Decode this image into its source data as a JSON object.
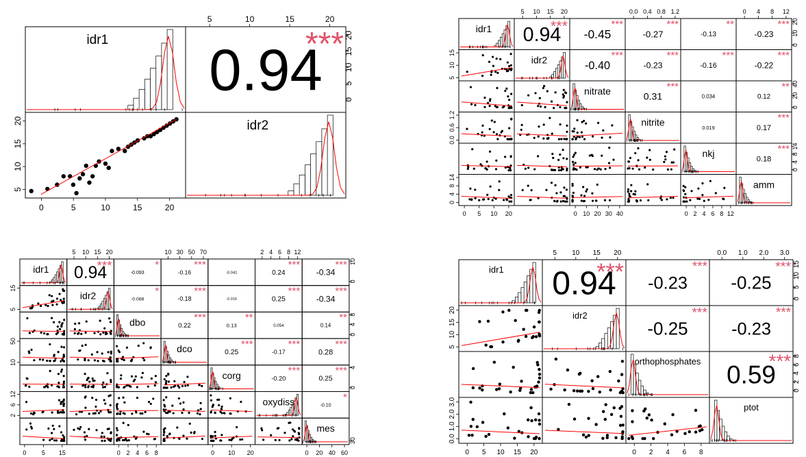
{
  "colors": {
    "star": "#DF536B",
    "point": "#000000",
    "smooth": "#FF0000",
    "frame": "#000000",
    "hist": "#ffffff"
  },
  "chart_data": [
    {
      "type": "scatter",
      "title": "",
      "variables": [
        "idr1",
        "idr2"
      ],
      "correlations": [
        {
          "pair": [
            "idr1",
            "idr2"
          ],
          "r": "0.94",
          "stars": "***"
        }
      ],
      "axis_ticks": {
        "top": [
          {
            "col": "idr2",
            "labels": [
              "5",
              "10",
              "15",
              "20"
            ]
          }
        ],
        "right": [
          {
            "row": "idr1",
            "labels": [
              "0",
              "5",
              "10",
              "15",
              "20"
            ]
          }
        ],
        "left": [
          {
            "row": "idr2",
            "labels": [
              "5",
              "10",
              "15",
              "20"
            ]
          }
        ],
        "bottom": [
          {
            "col": "idr1",
            "labels": [
              "0",
              "5",
              "10",
              "15",
              "20"
            ]
          }
        ]
      },
      "scatter_points": [
        {
          "row": "idr2",
          "col": "idr1",
          "x": [
            -2.5,
            0,
            1.5,
            2.5,
            3.5,
            4,
            4.5,
            5,
            5.5,
            6,
            6.5,
            7,
            7.5,
            8,
            9,
            9.5,
            10,
            11,
            12,
            12.5,
            13,
            13.5,
            14,
            15,
            15.5,
            16,
            16.5,
            17,
            17.5,
            18,
            18.5,
            19,
            19.5,
            20
          ],
          "y": [
            3,
            3.5,
            4.5,
            6.5,
            6.5,
            4.5,
            2.5,
            6,
            7,
            9,
            5,
            6.5,
            9,
            10,
            9.5,
            8.5,
            12.5,
            13,
            12.5,
            13.5,
            14,
            14.5,
            15,
            15.5,
            16,
            16,
            16.5,
            17,
            17.5,
            18,
            18.5,
            19,
            19.5,
            20
          ]
        }
      ]
    },
    {
      "type": "scatter",
      "title": "",
      "variables": [
        "idr1",
        "idr2",
        "nitrate",
        "nitrite",
        "nkj",
        "amm"
      ],
      "correlations": [
        {
          "pair": [
            "idr1",
            "idr2"
          ],
          "r": "0.94",
          "stars": "***"
        },
        {
          "pair": [
            "idr1",
            "nitrate"
          ],
          "r": "-0.45",
          "stars": "***"
        },
        {
          "pair": [
            "idr1",
            "nitrite"
          ],
          "r": "-0.27",
          "stars": "***"
        },
        {
          "pair": [
            "idr1",
            "nkj"
          ],
          "r": "-0.13",
          "stars": "**"
        },
        {
          "pair": [
            "idr1",
            "amm"
          ],
          "r": "-0.23",
          "stars": "***"
        },
        {
          "pair": [
            "idr2",
            "nitrate"
          ],
          "r": "-0.40",
          "stars": "***"
        },
        {
          "pair": [
            "idr2",
            "nitrite"
          ],
          "r": "-0.23",
          "stars": "***"
        },
        {
          "pair": [
            "idr2",
            "nkj"
          ],
          "r": "-0.16",
          "stars": "***"
        },
        {
          "pair": [
            "idr2",
            "amm"
          ],
          "r": "-0.22",
          "stars": "***"
        },
        {
          "pair": [
            "nitrate",
            "nitrite"
          ],
          "r": "0.31",
          "stars": "***"
        },
        {
          "pair": [
            "nitrate",
            "nkj"
          ],
          "r": "0.034",
          "stars": ""
        },
        {
          "pair": [
            "nitrate",
            "amm"
          ],
          "r": "0.12",
          "stars": "**"
        },
        {
          "pair": [
            "nitrite",
            "nkj"
          ],
          "r": "0.019",
          "stars": ""
        },
        {
          "pair": [
            "nitrite",
            "amm"
          ],
          "r": "0.17",
          "stars": "***"
        },
        {
          "pair": [
            "nkj",
            "amm"
          ],
          "r": "0.18",
          "stars": "***"
        }
      ],
      "axis_ticks": {
        "top": [
          {
            "col": "idr2",
            "labels": [
              "5",
              "10",
              "15",
              "20"
            ]
          },
          {
            "col": "nitrite",
            "labels": [
              "0.0",
              "0.4",
              "0.8",
              "1.2"
            ]
          },
          {
            "col": "amm",
            "labels": [
              "0",
              "4",
              "8",
              "12"
            ]
          }
        ],
        "right": [
          {
            "row": "idr1",
            "labels": [
              "0",
              "10",
              "20"
            ]
          },
          {
            "row": "nitrate",
            "labels": [
              "0",
              "20",
              "40"
            ]
          },
          {
            "row": "nkj",
            "labels": [
              "0",
              "4",
              "8",
              "14"
            ]
          }
        ],
        "left": [
          {
            "row": "idr2",
            "labels": [
              "5",
              "10",
              "15"
            ]
          },
          {
            "row": "nitrite",
            "labels": [
              "0.0",
              "0.6",
              "1.2"
            ]
          },
          {
            "row": "amm",
            "labels": [
              "0",
              "4",
              "8",
              "14"
            ]
          }
        ],
        "bottom": [
          {
            "col": "idr1",
            "labels": [
              "0",
              "5",
              "10",
              "20"
            ]
          },
          {
            "col": "nitrate",
            "labels": [
              "0",
              "10",
              "20",
              "30",
              "40"
            ]
          },
          {
            "col": "nkj",
            "labels": [
              "0",
              "2",
              "4",
              "6",
              "8",
              "12"
            ]
          }
        ]
      }
    },
    {
      "type": "scatter",
      "title": "",
      "variables": [
        "idr1",
        "idr2",
        "dbo",
        "dco",
        "corg",
        "oxydiss",
        "mes"
      ],
      "correlations": [
        {
          "pair": [
            "idr1",
            "idr2"
          ],
          "r": "0.94",
          "stars": "***"
        },
        {
          "pair": [
            "idr1",
            "dbo"
          ],
          "r": "-0.093",
          "stars": "*"
        },
        {
          "pair": [
            "idr1",
            "dco"
          ],
          "r": "-0.16",
          "stars": "***"
        },
        {
          "pair": [
            "idr1",
            "corg"
          ],
          "r": "-0.041",
          "stars": ""
        },
        {
          "pair": [
            "idr1",
            "oxydiss"
          ],
          "r": "0.24",
          "stars": "***"
        },
        {
          "pair": [
            "idr1",
            "mes"
          ],
          "r": "-0.34",
          "stars": "***"
        },
        {
          "pair": [
            "idr2",
            "dbo"
          ],
          "r": "-0.088",
          "stars": "*"
        },
        {
          "pair": [
            "idr2",
            "dco"
          ],
          "r": "-0.18",
          "stars": "***"
        },
        {
          "pair": [
            "idr2",
            "corg"
          ],
          "r": "-0.019",
          "stars": ""
        },
        {
          "pair": [
            "idr2",
            "oxydiss"
          ],
          "r": "0.25",
          "stars": "***"
        },
        {
          "pair": [
            "idr2",
            "mes"
          ],
          "r": "-0.34",
          "stars": "***"
        },
        {
          "pair": [
            "dbo",
            "dco"
          ],
          "r": "0.22",
          "stars": "***"
        },
        {
          "pair": [
            "dbo",
            "corg"
          ],
          "r": "0.13",
          "stars": "**"
        },
        {
          "pair": [
            "dbo",
            "oxydiss"
          ],
          "r": "0.054",
          "stars": ""
        },
        {
          "pair": [
            "dbo",
            "mes"
          ],
          "r": "0.14",
          "stars": "**"
        },
        {
          "pair": [
            "dco",
            "corg"
          ],
          "r": "0.25",
          "stars": "***"
        },
        {
          "pair": [
            "dco",
            "oxydiss"
          ],
          "r": "-0.17",
          "stars": "***"
        },
        {
          "pair": [
            "dco",
            "mes"
          ],
          "r": "0.28",
          "stars": "***"
        },
        {
          "pair": [
            "corg",
            "oxydiss"
          ],
          "r": "-0.20",
          "stars": "***"
        },
        {
          "pair": [
            "corg",
            "mes"
          ],
          "r": "0.25",
          "stars": "***"
        },
        {
          "pair": [
            "oxydiss",
            "mes"
          ],
          "r": "-0.10",
          "stars": "*"
        }
      ],
      "axis_ticks": {
        "top": [
          {
            "col": "idr2",
            "labels": [
              "5",
              "10",
              "15",
              "20"
            ]
          },
          {
            "col": "dco",
            "labels": [
              "10",
              "30",
              "50",
              "70"
            ]
          },
          {
            "col": "oxydiss",
            "labels": [
              "2",
              "4",
              "6",
              "8",
              "12"
            ]
          }
        ],
        "right": [
          {
            "row": "idr1",
            "labels": [
              "0",
              "10"
            ]
          },
          {
            "row": "dbo",
            "labels": [
              "0",
              "4",
              "8"
            ]
          },
          {
            "row": "corg",
            "labels": [
              "0",
              "4"
            ]
          },
          {
            "row": "mes",
            "labels": [
              "30"
            ]
          }
        ],
        "left": [
          {
            "row": "idr2",
            "labels": [
              "5",
              "15"
            ]
          },
          {
            "row": "dco",
            "labels": [
              "10",
              "50"
            ]
          },
          {
            "row": "oxydiss",
            "labels": [
              "2",
              "6",
              "12"
            ]
          }
        ],
        "bottom": [
          {
            "col": "idr1",
            "labels": [
              "0",
              "5",
              "15"
            ]
          },
          {
            "col": "dbo",
            "labels": [
              "0",
              "2",
              "4",
              "6",
              "8"
            ]
          },
          {
            "col": "corg",
            "labels": [
              "0",
              "10",
              "20"
            ]
          },
          {
            "col": "mes",
            "labels": [
              "0",
              "20",
              "40",
              "60"
            ]
          }
        ]
      }
    },
    {
      "type": "scatter",
      "title": "",
      "variables": [
        "idr1",
        "idr2",
        "orthophosphates",
        "ptot"
      ],
      "correlations": [
        {
          "pair": [
            "idr1",
            "idr2"
          ],
          "r": "0.94",
          "stars": "***"
        },
        {
          "pair": [
            "idr1",
            "orthophosphates"
          ],
          "r": "-0.23",
          "stars": "***"
        },
        {
          "pair": [
            "idr1",
            "ptot"
          ],
          "r": "-0.25",
          "stars": "***"
        },
        {
          "pair": [
            "idr2",
            "orthophosphates"
          ],
          "r": "-0.25",
          "stars": "***"
        },
        {
          "pair": [
            "idr2",
            "ptot"
          ],
          "r": "-0.23",
          "stars": "***"
        },
        {
          "pair": [
            "orthophosphates",
            "ptot"
          ],
          "r": "0.59",
          "stars": "***"
        }
      ],
      "axis_ticks": {
        "top": [
          {
            "col": "idr2",
            "labels": [
              "5",
              "10",
              "15",
              "20"
            ]
          },
          {
            "col": "ptot",
            "labels": [
              "0.0",
              "1.0",
              "2.0",
              "3.0"
            ]
          }
        ],
        "right": [
          {
            "row": "idr1",
            "labels": [
              "0",
              "5",
              "10",
              "15"
            ]
          },
          {
            "row": "orthophosphates",
            "labels": [
              "0",
              "2",
              "4",
              "6",
              "8"
            ]
          }
        ],
        "left": [
          {
            "row": "idr2",
            "labels": [
              "5",
              "10",
              "15",
              "20"
            ]
          },
          {
            "row": "ptot",
            "labels": [
              "0.0",
              "1.0",
              "2.0",
              "3.0"
            ]
          }
        ],
        "bottom": [
          {
            "col": "idr1",
            "labels": [
              "0",
              "5",
              "10",
              "15",
              "20"
            ]
          },
          {
            "col": "orthophosphates",
            "labels": [
              "0",
              "2",
              "4",
              "6",
              "8"
            ]
          }
        ]
      }
    }
  ]
}
